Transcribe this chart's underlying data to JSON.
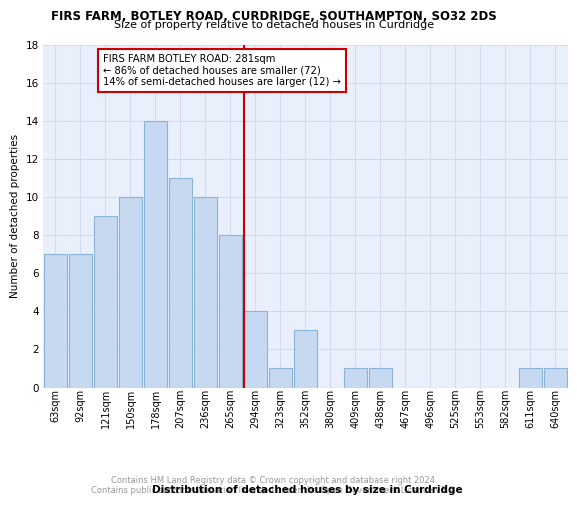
{
  "title": "FIRS FARM, BOTLEY ROAD, CURDRIDGE, SOUTHAMPTON, SO32 2DS",
  "subtitle": "Size of property relative to detached houses in Curdridge",
  "xlabel": "Distribution of detached houses by size in Curdridge",
  "ylabel": "Number of detached properties",
  "bins": [
    "63sqm",
    "92sqm",
    "121sqm",
    "150sqm",
    "178sqm",
    "207sqm",
    "236sqm",
    "265sqm",
    "294sqm",
    "323sqm",
    "352sqm",
    "380sqm",
    "409sqm",
    "438sqm",
    "467sqm",
    "496sqm",
    "525sqm",
    "553sqm",
    "582sqm",
    "611sqm",
    "640sqm"
  ],
  "values": [
    7,
    7,
    9,
    10,
    14,
    11,
    10,
    8,
    4,
    1,
    3,
    0,
    1,
    1,
    0,
    0,
    0,
    0,
    0,
    1,
    1
  ],
  "bar_color": "#c6d9f1",
  "bar_edge_color": "#8ab4d8",
  "reference_line_color": "#cc0000",
  "annotation_lines": [
    "FIRS FARM BOTLEY ROAD: 281sqm",
    "← 86% of detached houses are smaller (72)",
    "14% of semi-detached houses are larger (12) →"
  ],
  "ylim": [
    0,
    18
  ],
  "yticks": [
    0,
    2,
    4,
    6,
    8,
    10,
    12,
    14,
    16,
    18
  ],
  "grid_color": "#d0ddf0",
  "footer_text": "Contains HM Land Registry data © Crown copyright and database right 2024.\nContains public sector information licensed under the Open Government Licence v3.0.",
  "background_color": "#ffffff",
  "plot_background_color": "#eaf0fb"
}
